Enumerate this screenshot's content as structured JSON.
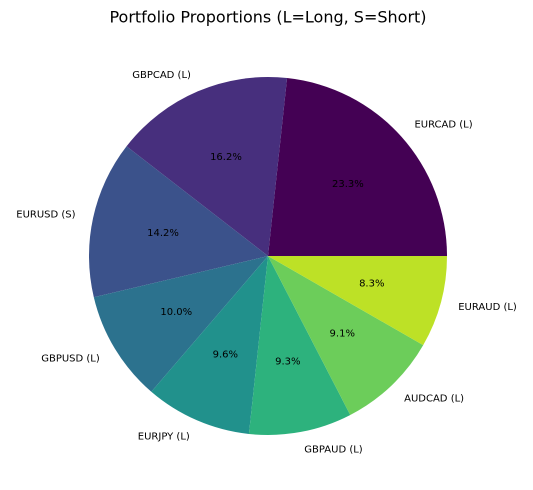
{
  "chart_data": {
    "type": "pie",
    "title": "Portfolio Proportions (L=Long, S=Short)",
    "categories": [
      "EURCAD (L)",
      "GBPCAD (L)",
      "EURUSD (S)",
      "GBPUSD (L)",
      "EURJPY (L)",
      "GBPAUD (L)",
      "AUDCAD (L)",
      "EURAUD (L)"
    ],
    "values": [
      23.3,
      16.2,
      14.2,
      10.0,
      9.6,
      9.3,
      9.1,
      8.3
    ],
    "value_labels": [
      "23.3%",
      "16.2%",
      "14.2%",
      "10.0%",
      "9.6%",
      "9.3%",
      "9.1%",
      "8.3%"
    ],
    "colors": [
      "#440154",
      "#472f7d",
      "#3b528b",
      "#2c728e",
      "#21918c",
      "#2db27d",
      "#6ccd5a",
      "#bde126"
    ]
  }
}
